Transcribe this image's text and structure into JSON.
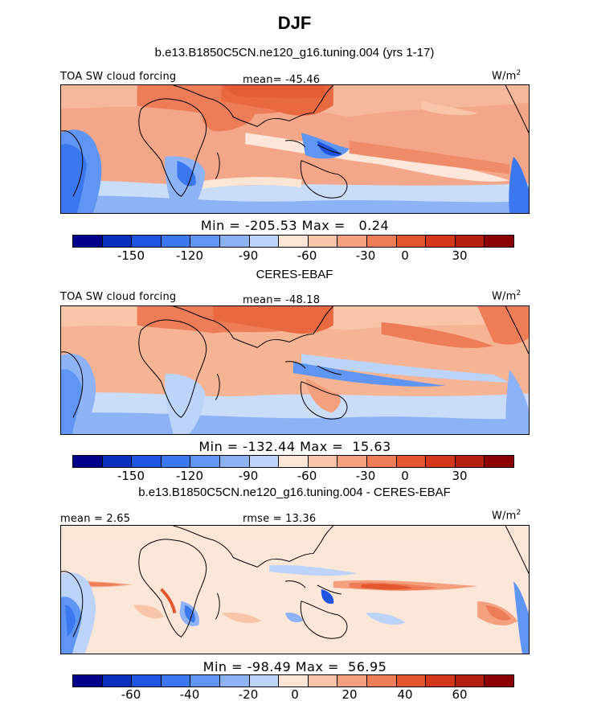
{
  "title": "DJF",
  "panels": [
    {
      "heading": "b.e13.B1850C5CN.ne120_g16.tuning.004 (yrs 1-17)",
      "left_label": "TOA SW cloud forcing",
      "center_label": "mean= -45.46",
      "units": "W/m",
      "units_exp": "2",
      "minmax": "Min = -205.53 Max =   0.24",
      "colorbar_ticks": [
        "-150",
        "-120",
        "-90",
        "-60",
        "-30",
        "0",
        "30"
      ]
    },
    {
      "heading": "CERES-EBAF",
      "left_label": "TOA SW cloud forcing",
      "center_label": "mean= -48.18",
      "units": "W/m",
      "units_exp": "2",
      "minmax": "Min = -132.44 Max =  15.63",
      "colorbar_ticks": [
        "-150",
        "-120",
        "-90",
        "-60",
        "-30",
        "0",
        "30"
      ]
    },
    {
      "heading": "b.e13.B1850C5CN.ne120_g16.tuning.004 - CERES-EBAF",
      "left_label": "mean =   2.65",
      "center_label": "rmse =  13.36",
      "units": "W/m",
      "units_exp": "2",
      "minmax": "Min = -98.49 Max =  56.95",
      "colorbar_ticks": [
        "-60",
        "-40",
        "-20",
        "0",
        "20",
        "40",
        "60"
      ]
    }
  ],
  "colors": {
    "scale": [
      "#00008b",
      "#0a2fbf",
      "#1f55e0",
      "#3b77ee",
      "#5f95f3",
      "#8db2f6",
      "#bcd4f8",
      "#fbe6d6",
      "#f9c5a8",
      "#f4a07e",
      "#ee7c57",
      "#e4572e",
      "#d2371a",
      "#b42010",
      "#8b0000"
    ],
    "ocean_base_mean": "#f6b494",
    "ocean_base_diff": "#fce6d8"
  }
}
